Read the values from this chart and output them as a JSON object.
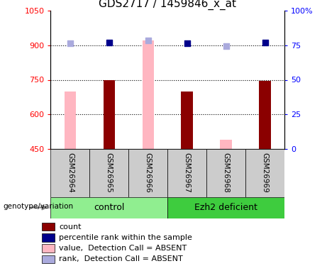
{
  "title": "GDS2717 / 1459846_x_at",
  "samples": [
    "GSM26964",
    "GSM26965",
    "GSM26966",
    "GSM26967",
    "GSM26968",
    "GSM26969"
  ],
  "ylim_left": [
    450,
    1050
  ],
  "ylim_right": [
    0,
    100
  ],
  "yticks_left": [
    450,
    600,
    750,
    900,
    1050
  ],
  "yticks_right": [
    0,
    25,
    50,
    75,
    100
  ],
  "ytick_labels_left": [
    "450",
    "600",
    "750",
    "900",
    "1050"
  ],
  "ytick_labels_right": [
    "0",
    "25",
    "50",
    "75",
    "100%"
  ],
  "bar_bottom": 450,
  "count_bars": {
    "values": [
      null,
      750,
      null,
      700,
      null,
      745
    ],
    "color": "#8B0000"
  },
  "absent_value_bars": {
    "values": [
      700,
      null,
      920,
      null,
      490,
      null
    ],
    "color": "#FFB6C1"
  },
  "percentile_rank_dots": {
    "values": [
      null,
      912,
      null,
      908,
      null,
      912
    ],
    "color": "#00008B",
    "marker": "s",
    "size": 30
  },
  "absent_rank_dots": {
    "values": [
      907,
      null,
      920,
      null,
      895,
      null
    ],
    "color": "#AAAADD",
    "marker": "s",
    "size": 30
  },
  "group_colors": {
    "control": "#90EE90",
    "Ezh2 deficient": "#3ECC3E"
  },
  "legend_labels": [
    "count",
    "percentile rank within the sample",
    "value,  Detection Call = ABSENT",
    "rank,  Detection Call = ABSENT"
  ],
  "legend_colors": [
    "#8B0000",
    "#00008B",
    "#FFB6C1",
    "#AAAADD"
  ],
  "title_fontsize": 11,
  "tick_fontsize": 8,
  "bar_width": 0.3
}
